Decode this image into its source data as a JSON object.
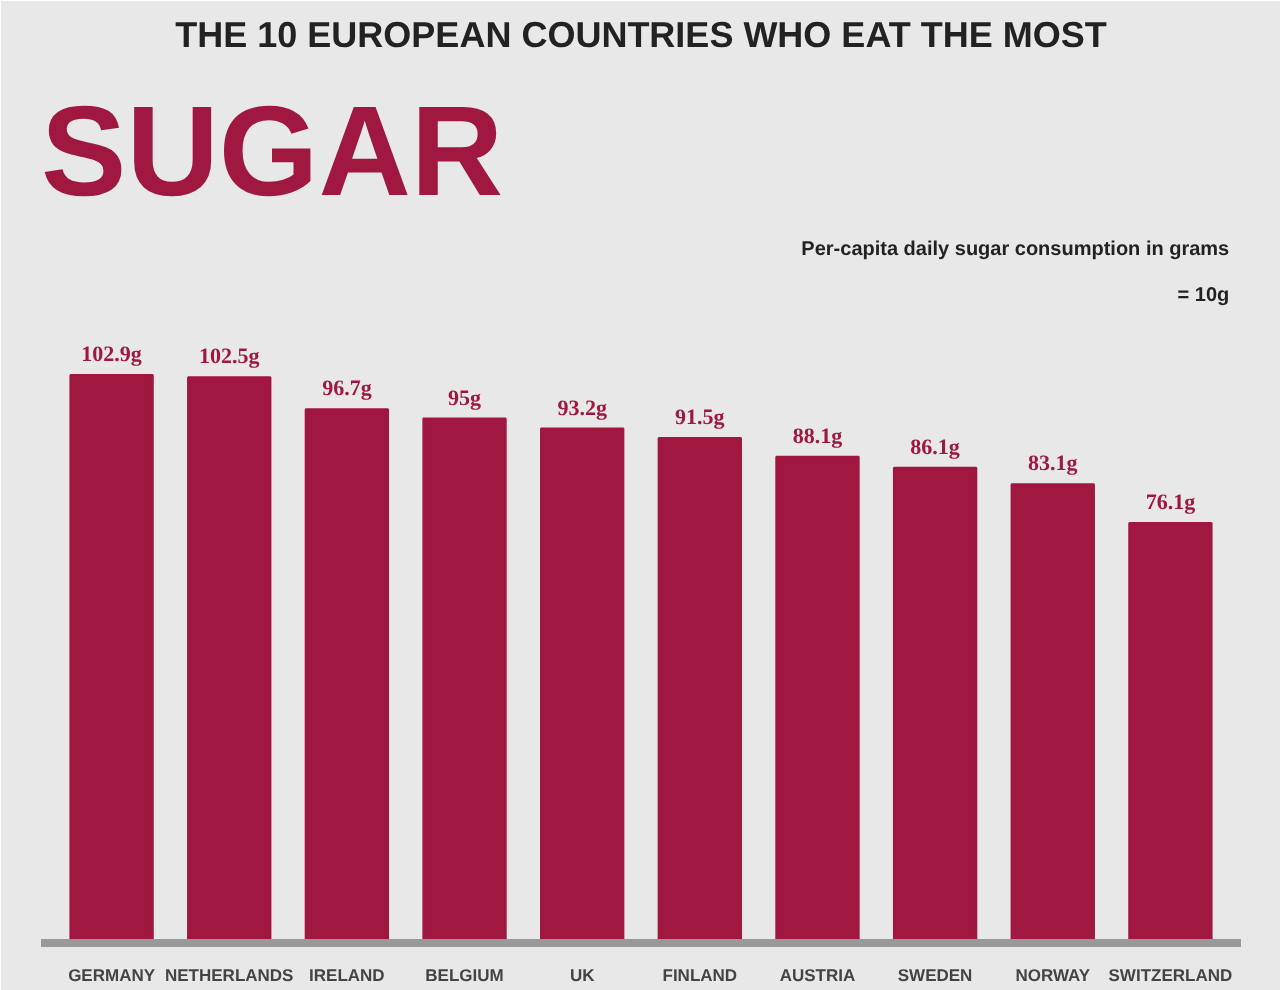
{
  "chart_data": {
    "type": "bar",
    "title": "THE 10 EUROPEAN COUNTRIES WHO EAT THE MOST",
    "subtitle": "SUGAR",
    "categories": [
      "GERMANY",
      "NETHERLANDS",
      "IRELAND",
      "BELGIUM",
      "UK",
      "FINLAND",
      "AUSTRIA",
      "SWEDEN",
      "NORWAY",
      "SWITZERLAND"
    ],
    "values": [
      102.9,
      102.5,
      96.7,
      95,
      93.2,
      91.5,
      88.1,
      86.1,
      83.1,
      76.1
    ],
    "value_labels": [
      "102.9g",
      "102.5g",
      "96.7g",
      "95g",
      "93.2g",
      "91.5g",
      "88.1g",
      "86.1g",
      "83.1g",
      "76.1g"
    ],
    "color": "#a0173f",
    "annotations": [
      "Per-capita daily sugar consumption in grams",
      "= 10g"
    ]
  }
}
